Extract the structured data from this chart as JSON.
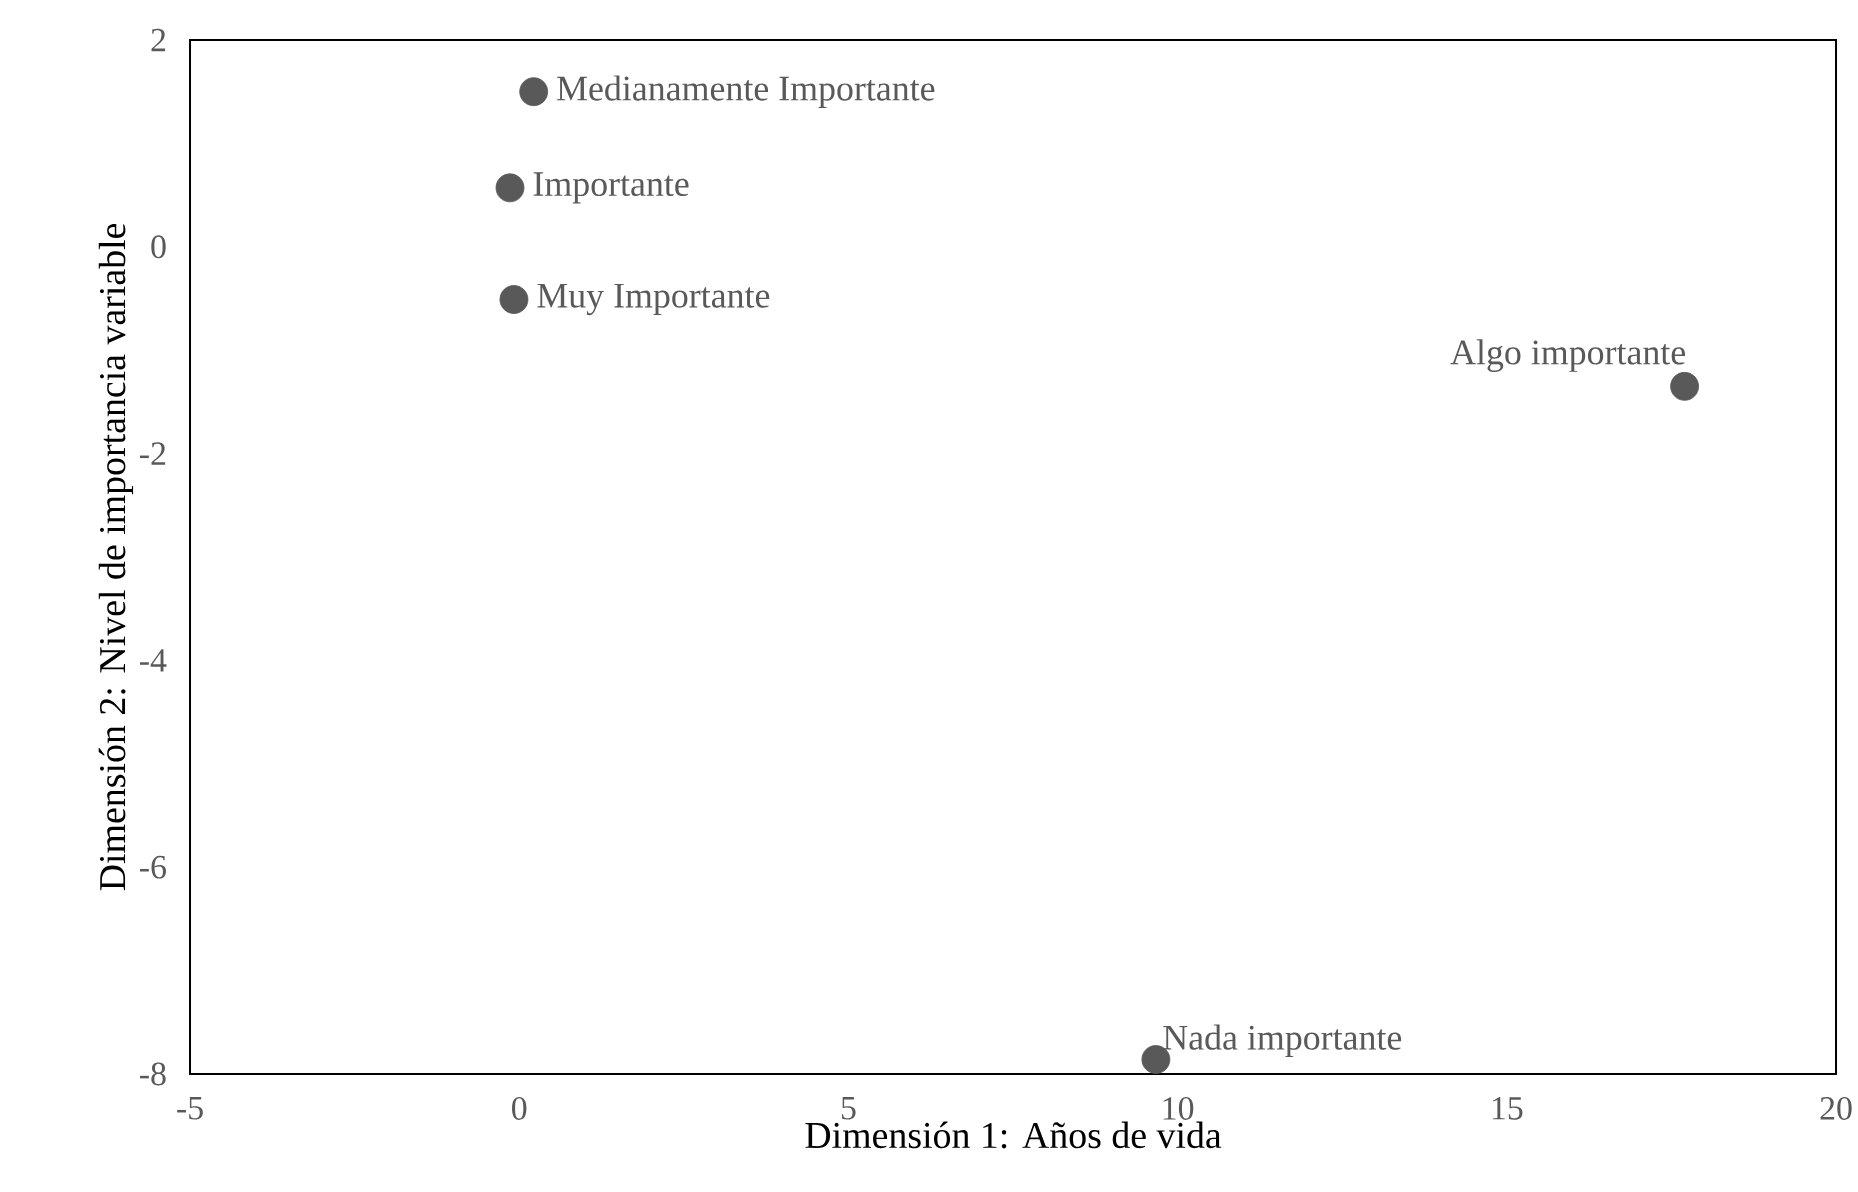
{
  "chart_data": {
    "type": "scatter",
    "xlabel": "Dimensión 1: Años de vida",
    "ylabel": "Dimensión 2: Nivel de importancia  variable",
    "x": [
      0.22,
      -0.14,
      -0.08,
      17.7,
      9.67
    ],
    "series": [
      {
        "color": "#595959",
        "values": [
          1.5,
          0.57,
          -0.51,
          -1.35,
          -7.86
        ]
      }
    ],
    "grid": false,
    "xlim": [
      -5,
      20
    ],
    "ylim": [
      -8,
      2
    ],
    "xticks": [
      -5,
      0,
      5,
      10,
      15,
      20
    ],
    "yticks": [
      -8,
      -6,
      -4,
      -2,
      0,
      2
    ],
    "annotations": [
      {
        "text": "Medianamente Importante",
        "x": 0.22,
        "y": 1.5
      },
      {
        "text": "Importante",
        "x": -0.14,
        "y": 0.57
      },
      {
        "text": "Muy Importante",
        "x": -0.08,
        "y": -0.51
      },
      {
        "text": "Algo importante",
        "x": 17.7,
        "y": -1.35
      },
      {
        "text": "Nada importante",
        "x": 9.67,
        "y": -7.86
      }
    ]
  }
}
